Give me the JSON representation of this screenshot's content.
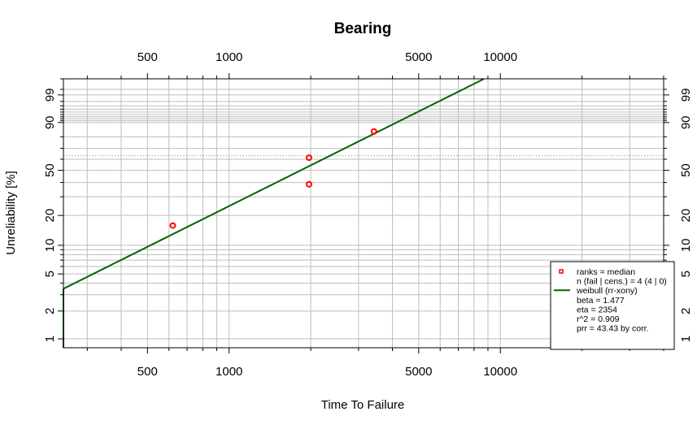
{
  "chart_data": {
    "type": "scatter",
    "title": "Bearing",
    "xlabel": "Time To Failure",
    "ylabel": "Unreliability [%]",
    "x_scale": "log",
    "y_scale": "weibull",
    "xlim": [
      245,
      40000
    ],
    "ylim": [
      0.8,
      99.9
    ],
    "x_major_ticks": [
      500,
      1000,
      5000,
      10000
    ],
    "y_major_ticks": [
      1,
      2,
      5,
      10,
      20,
      50,
      90,
      99
    ],
    "grid": true,
    "reference_line_y": 63.2,
    "series": [
      {
        "name": "ranks = median",
        "kind": "points",
        "color": "#ff0000",
        "points": [
          {
            "x": 620,
            "y": 15.9
          },
          {
            "x": 1970,
            "y": 38.6
          },
          {
            "x": 1970,
            "y": 61.4
          },
          {
            "x": 3420,
            "y": 84.1
          }
        ]
      },
      {
        "name": "weibull (rr-xony)",
        "kind": "line",
        "color": "#006400",
        "beta": 1.477,
        "eta": 2354
      }
    ],
    "legend": {
      "position": "bottom-right",
      "entries": [
        "ranks = median",
        "n (fail | cens.) = 4 (4 | 0)",
        "weibull (rr-xony)",
        "beta = 1.477",
        "eta = 2354",
        "r^2 = 0.909",
        "prr = 43.43 by corr."
      ]
    }
  }
}
